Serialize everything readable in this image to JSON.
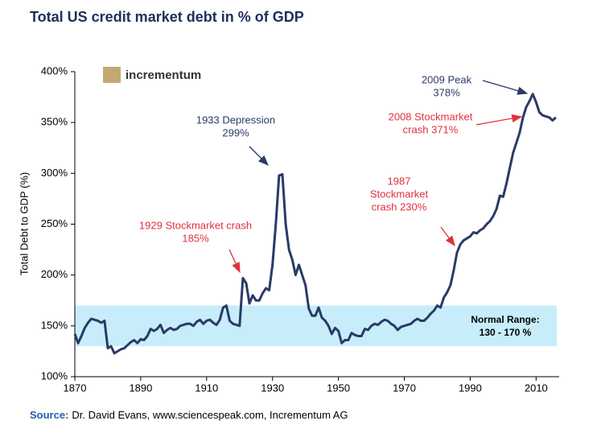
{
  "chart_data": {
    "type": "line",
    "title": "Total US credit market debt in % of GDP",
    "logo": "incrementum",
    "ylabel": "Total Debt to GDP (%)",
    "source_label": "Source:",
    "source_text": "Dr. David Evans, www.sciencespeak.com, Incrementum AG",
    "xlim": [
      1870,
      2017
    ],
    "xticks": [
      1870,
      1890,
      1910,
      1930,
      1950,
      1970,
      1990,
      2010
    ],
    "ylim": [
      100,
      400
    ],
    "yticks": [
      {
        "value": 100,
        "label": "100%"
      },
      {
        "value": 150,
        "label": "150%"
      },
      {
        "value": 200,
        "label": "200%"
      },
      {
        "value": 250,
        "label": "250%"
      },
      {
        "value": 300,
        "label": "300%"
      },
      {
        "value": 350,
        "label": "350%"
      },
      {
        "value": 400,
        "label": "400%"
      }
    ],
    "color": "#2b3a67",
    "x": [
      1870,
      1871,
      1872,
      1873,
      1874,
      1875,
      1876,
      1877,
      1878,
      1879,
      1880,
      1881,
      1882,
      1883,
      1884,
      1885,
      1886,
      1887,
      1888,
      1889,
      1890,
      1891,
      1892,
      1893,
      1894,
      1895,
      1896,
      1897,
      1898,
      1899,
      1900,
      1901,
      1902,
      1903,
      1904,
      1905,
      1906,
      1907,
      1908,
      1909,
      1910,
      1911,
      1912,
      1913,
      1914,
      1915,
      1916,
      1917,
      1918,
      1919,
      1920,
      1921,
      1922,
      1923,
      1924,
      1925,
      1926,
      1927,
      1928,
      1929,
      1930,
      1931,
      1932,
      1933,
      1934,
      1935,
      1936,
      1937,
      1938,
      1939,
      1940,
      1941,
      1942,
      1943,
      1944,
      1945,
      1946,
      1947,
      1948,
      1949,
      1950,
      1951,
      1952,
      1953,
      1954,
      1955,
      1956,
      1957,
      1958,
      1959,
      1960,
      1961,
      1962,
      1963,
      1964,
      1965,
      1966,
      1967,
      1968,
      1969,
      1970,
      1971,
      1972,
      1973,
      1974,
      1975,
      1976,
      1977,
      1978,
      1979,
      1980,
      1981,
      1982,
      1983,
      1984,
      1985,
      1986,
      1987,
      1988,
      1989,
      1990,
      1991,
      1992,
      1993,
      1994,
      1995,
      1996,
      1997,
      1998,
      1999,
      2000,
      2001,
      2002,
      2003,
      2004,
      2005,
      2006,
      2007,
      2008,
      2009,
      2010,
      2011,
      2012,
      2013,
      2014,
      2015,
      2016
    ],
    "values": [
      142,
      133,
      140,
      148,
      153,
      157,
      156,
      155,
      153,
      155,
      128,
      130,
      123,
      125,
      127,
      128,
      131,
      134,
      136,
      133,
      137,
      136,
      140,
      147,
      145,
      147,
      151,
      143,
      146,
      148,
      146,
      147,
      150,
      151,
      152,
      152,
      150,
      154,
      156,
      152,
      155,
      156,
      153,
      151,
      156,
      168,
      170,
      155,
      152,
      151,
      150,
      197,
      192,
      172,
      180,
      175,
      175,
      182,
      187,
      185,
      210,
      250,
      298,
      299,
      250,
      225,
      215,
      200,
      210,
      200,
      190,
      167,
      160,
      160,
      168,
      158,
      155,
      150,
      142,
      148,
      145,
      133,
      136,
      136,
      143,
      141,
      140,
      140,
      147,
      146,
      150,
      152,
      151,
      154,
      156,
      155,
      152,
      150,
      146,
      149,
      150,
      151,
      152,
      155,
      157,
      155,
      155,
      158,
      162,
      165,
      170,
      168,
      178,
      183,
      190,
      205,
      222,
      230,
      234,
      236,
      238,
      242,
      241,
      244,
      246,
      250,
      253,
      258,
      265,
      278,
      277,
      290,
      305,
      320,
      330,
      340,
      355,
      365,
      371,
      378,
      370,
      360,
      357,
      356,
      355,
      352,
      355
    ],
    "normal_range": {
      "lines": [
        "Normal Range:",
        "130 - 170 %"
      ],
      "values": [
        130,
        170
      ],
      "color": "#c7edfa"
    },
    "annotations": [
      {
        "lines": [
          "1929 Stockmarket crash",
          "185%"
        ],
        "color": "#e0303f"
      },
      {
        "lines": [
          "1933 Depression",
          "299%"
        ],
        "color": "#2b3a67"
      },
      {
        "lines": [
          "1987",
          "Stockmarket",
          "crash 230%"
        ],
        "color": "#e0303f"
      },
      {
        "lines": [
          "2008 Stockmarket",
          "crash 371%"
        ],
        "color": "#e0303f"
      },
      {
        "lines": [
          "2009 Peak",
          "378%"
        ],
        "color": "#2b3a67"
      }
    ]
  }
}
